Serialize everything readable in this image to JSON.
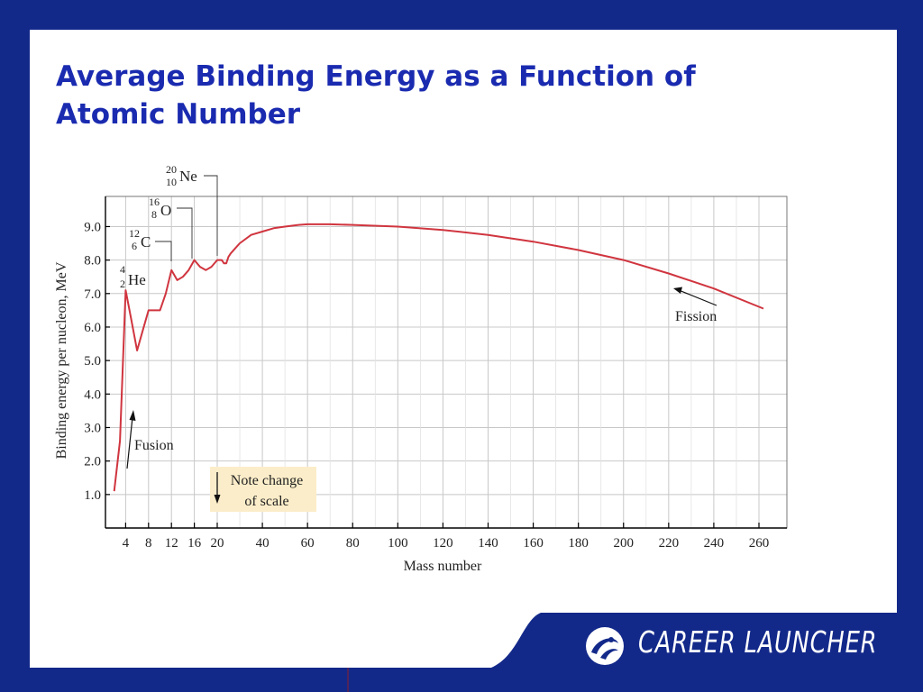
{
  "slide": {
    "title": "Average Binding Energy as a Function of Atomic Number",
    "brand": "CAREER LAUNCHER",
    "brand_logo": "career-launcher-swirl-icon",
    "colors": {
      "background": "#13298a",
      "title": "#1a2bb0",
      "curve": "#d0353f",
      "note_box": "#fbedc9"
    }
  },
  "chart_data": {
    "type": "line",
    "title": "",
    "xlabel": "Mass number",
    "ylabel": "Binding energy per nucleon, MeV",
    "x_scale": "piecewise: 0–20 expanded, 20–260 compressed",
    "x_ticks_low": [
      4,
      8,
      12,
      16,
      20
    ],
    "x_ticks_high": [
      40,
      60,
      80,
      100,
      120,
      140,
      160,
      180,
      200,
      220,
      240,
      260
    ],
    "y_ticks": [
      1.0,
      2.0,
      3.0,
      4.0,
      5.0,
      6.0,
      7.0,
      8.0,
      9.0
    ],
    "ylim": [
      0,
      9.9
    ],
    "grid": true,
    "series": [
      {
        "x": [
          2,
          3,
          4,
          5,
          6,
          7,
          8,
          9,
          10,
          11,
          12,
          13,
          14,
          15,
          16,
          17,
          18,
          19,
          20,
          21,
          22,
          23,
          24,
          25,
          26,
          28,
          30,
          35,
          40,
          45,
          50,
          56,
          60,
          70,
          80,
          100,
          120,
          140,
          160,
          180,
          200,
          220,
          240,
          262
        ],
        "y": [
          1.1,
          2.6,
          7.1,
          6.2,
          5.3,
          5.9,
          6.5,
          6.5,
          6.5,
          7.0,
          7.7,
          7.4,
          7.5,
          7.7,
          8.0,
          7.8,
          7.7,
          7.8,
          8.0,
          8.0,
          8.0,
          7.9,
          7.9,
          8.1,
          8.2,
          8.35,
          8.5,
          8.75,
          8.85,
          8.95,
          9.0,
          9.05,
          9.07,
          9.07,
          9.05,
          9.0,
          8.9,
          8.75,
          8.55,
          8.3,
          8.0,
          7.6,
          7.15,
          6.55
        ]
      }
    ],
    "annotations": {
      "he": {
        "mass": "4",
        "atomic": "2",
        "symbol": "He"
      },
      "c": {
        "mass": "12",
        "atomic": "6",
        "symbol": "C"
      },
      "o": {
        "mass": "16",
        "atomic": "8",
        "symbol": "O"
      },
      "ne": {
        "mass": "20",
        "atomic": "10",
        "symbol": "Ne"
      },
      "fusion": "Fusion",
      "fission": "Fission",
      "note_line1": "Note change",
      "note_line2": "of scale"
    }
  }
}
